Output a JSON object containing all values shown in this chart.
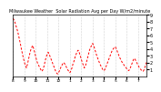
{
  "title": "Milwaukee Weather  Solar Radiation Avg per Day W/m2/minute",
  "line_color": "#ff0000",
  "background_color": "#ffffff",
  "plot_bg_color": "#ffffff",
  "grid_color": "#aaaaaa",
  "ylim": [
    0,
    9
  ],
  "yticks": [
    1,
    2,
    3,
    4,
    5,
    6,
    7,
    8,
    9
  ],
  "values": [
    8.5,
    8.2,
    7.8,
    7.3,
    6.8,
    6.2,
    5.5,
    4.8,
    4.0,
    3.3,
    2.6,
    2.0,
    1.5,
    1.2,
    1.8,
    2.5,
    3.2,
    3.8,
    4.2,
    4.5,
    4.0,
    3.4,
    2.8,
    2.2,
    1.8,
    1.5,
    1.2,
    0.9,
    0.7,
    1.0,
    1.5,
    2.2,
    2.8,
    3.2,
    3.5,
    3.2,
    2.8,
    2.4,
    2.0,
    1.6,
    1.2,
    0.8,
    0.5,
    0.3,
    0.5,
    0.8,
    1.2,
    1.5,
    1.8,
    2.0,
    1.8,
    1.5,
    1.2,
    0.9,
    0.7,
    0.5,
    0.8,
    1.2,
    1.8,
    2.2,
    2.8,
    3.2,
    3.6,
    3.8,
    3.5,
    3.0,
    2.5,
    2.0,
    1.6,
    1.2,
    1.5,
    2.0,
    2.6,
    3.2,
    3.8,
    4.2,
    4.5,
    4.8,
    4.5,
    4.0,
    3.5,
    3.0,
    2.6,
    2.2,
    1.8,
    1.5,
    1.2,
    0.9,
    0.8,
    1.0,
    1.4,
    1.8,
    2.2,
    2.6,
    3.0,
    3.4,
    3.8,
    4.0,
    4.2,
    4.3,
    4.0,
    3.6,
    3.2,
    2.8,
    2.5,
    2.2,
    1.9,
    1.7,
    1.5,
    1.3,
    1.1,
    0.9,
    0.8,
    1.0,
    1.4,
    1.8,
    2.2,
    2.6,
    2.5,
    2.2,
    1.9,
    1.6,
    1.3,
    1.1,
    0.9,
    0.8,
    0.7,
    1.0,
    1.5,
    2.0
  ],
  "xtick_labels": [
    "8",
    "9",
    "10",
    "11",
    "12",
    "1",
    "2",
    "3",
    "4",
    "5",
    "6",
    "7"
  ],
  "xtick_positions": [
    0,
    11,
    22,
    33,
    44,
    55,
    66,
    77,
    88,
    99,
    110,
    121
  ]
}
